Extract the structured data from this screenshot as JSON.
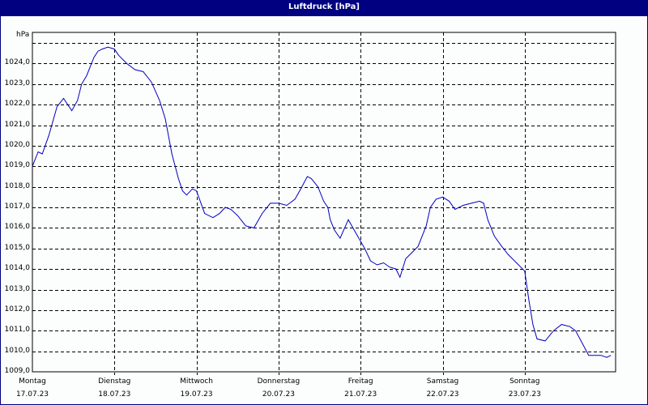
{
  "window": {
    "title": "Luftdruck [hPa]"
  },
  "colors": {
    "title_bar": "#000080",
    "line": "#0000c0",
    "grid": "#000000",
    "background": "#fcfdfd"
  },
  "chart_data": {
    "type": "line",
    "title": "Luftdruck [hPa]",
    "xlabel": "",
    "ylabel": "hPa",
    "ylim": [
      1009.0,
      1025.0
    ],
    "grid": true,
    "y_ticks": [
      "1024,0",
      "1023,0",
      "1022,0",
      "1021,0",
      "1020,0",
      "1019,0",
      "1018,0",
      "1017,0",
      "1016,0",
      "1015,0",
      "1014,0",
      "1013,0",
      "1012,0",
      "1011,0",
      "1010,0",
      "1009,0"
    ],
    "x_ticks": [
      {
        "day": "Montag",
        "date": "17.07.23"
      },
      {
        "day": "Dienstag",
        "date": "18.07.23"
      },
      {
        "day": "Mittwoch",
        "date": "19.07.23"
      },
      {
        "day": "Donnerstag",
        "date": "20.07.23"
      },
      {
        "day": "Freitag",
        "date": "21.07.23"
      },
      {
        "day": "Samstag",
        "date": "22.07.23"
      },
      {
        "day": "Sonntag",
        "date": "23.07.23"
      }
    ],
    "series": [
      {
        "name": "Luftdruck",
        "x_days": [
          0,
          0.07,
          0.12,
          0.2,
          0.3,
          0.38,
          0.48,
          0.55,
          0.6,
          0.66,
          0.75,
          0.8,
          0.85,
          0.92,
          1.0,
          1.05,
          1.15,
          1.25,
          1.35,
          1.45,
          1.55,
          1.62,
          1.7,
          1.78,
          1.83,
          1.88,
          1.95,
          2.0,
          2.1,
          2.2,
          2.28,
          2.35,
          2.42,
          2.5,
          2.6,
          2.7,
          2.8,
          2.9,
          3.0,
          3.1,
          3.2,
          3.27,
          3.35,
          3.4,
          3.48,
          3.55,
          3.6,
          3.63,
          3.68,
          3.75,
          3.85,
          3.95,
          4.05,
          4.12,
          4.2,
          4.28,
          4.35,
          4.43,
          4.48,
          4.55,
          4.6,
          4.7,
          4.8,
          4.85,
          4.92,
          5.0,
          5.08,
          5.15,
          5.25,
          5.35,
          5.45,
          5.5,
          5.55,
          5.63,
          5.72,
          5.8,
          5.9,
          6.0,
          6.05,
          6.1,
          6.15,
          6.25,
          6.35,
          6.45,
          6.55,
          6.62,
          6.7,
          6.78,
          6.85,
          6.93,
          7.0,
          7.05
        ],
        "values": [
          1019.0,
          1019.7,
          1019.6,
          1020.5,
          1021.9,
          1022.3,
          1021.7,
          1022.2,
          1023.0,
          1023.4,
          1024.3,
          1024.6,
          1024.7,
          1024.8,
          1024.7,
          1024.4,
          1024.0,
          1023.7,
          1023.6,
          1023.1,
          1022.2,
          1021.3,
          1019.6,
          1018.4,
          1017.8,
          1017.6,
          1017.9,
          1017.8,
          1016.7,
          1016.5,
          1016.7,
          1017.0,
          1016.9,
          1016.6,
          1016.1,
          1016.0,
          1016.7,
          1017.2,
          1017.2,
          1017.1,
          1017.4,
          1017.9,
          1018.5,
          1018.4,
          1018.0,
          1017.3,
          1017.0,
          1016.4,
          1015.9,
          1015.5,
          1016.4,
          1015.7,
          1015.0,
          1014.4,
          1014.2,
          1014.3,
          1014.1,
          1014.0,
          1013.6,
          1014.5,
          1014.7,
          1015.1,
          1016.1,
          1017.0,
          1017.4,
          1017.5,
          1017.3,
          1016.9,
          1017.1,
          1017.2,
          1017.3,
          1017.2,
          1016.4,
          1015.6,
          1015.1,
          1014.7,
          1014.3,
          1013.9,
          1012.5,
          1011.3,
          1010.6,
          1010.5,
          1011.0,
          1011.3,
          1011.2,
          1011.0,
          1010.4,
          1009.8,
          1009.8,
          1009.8,
          1009.7,
          1009.8
        ]
      }
    ]
  }
}
